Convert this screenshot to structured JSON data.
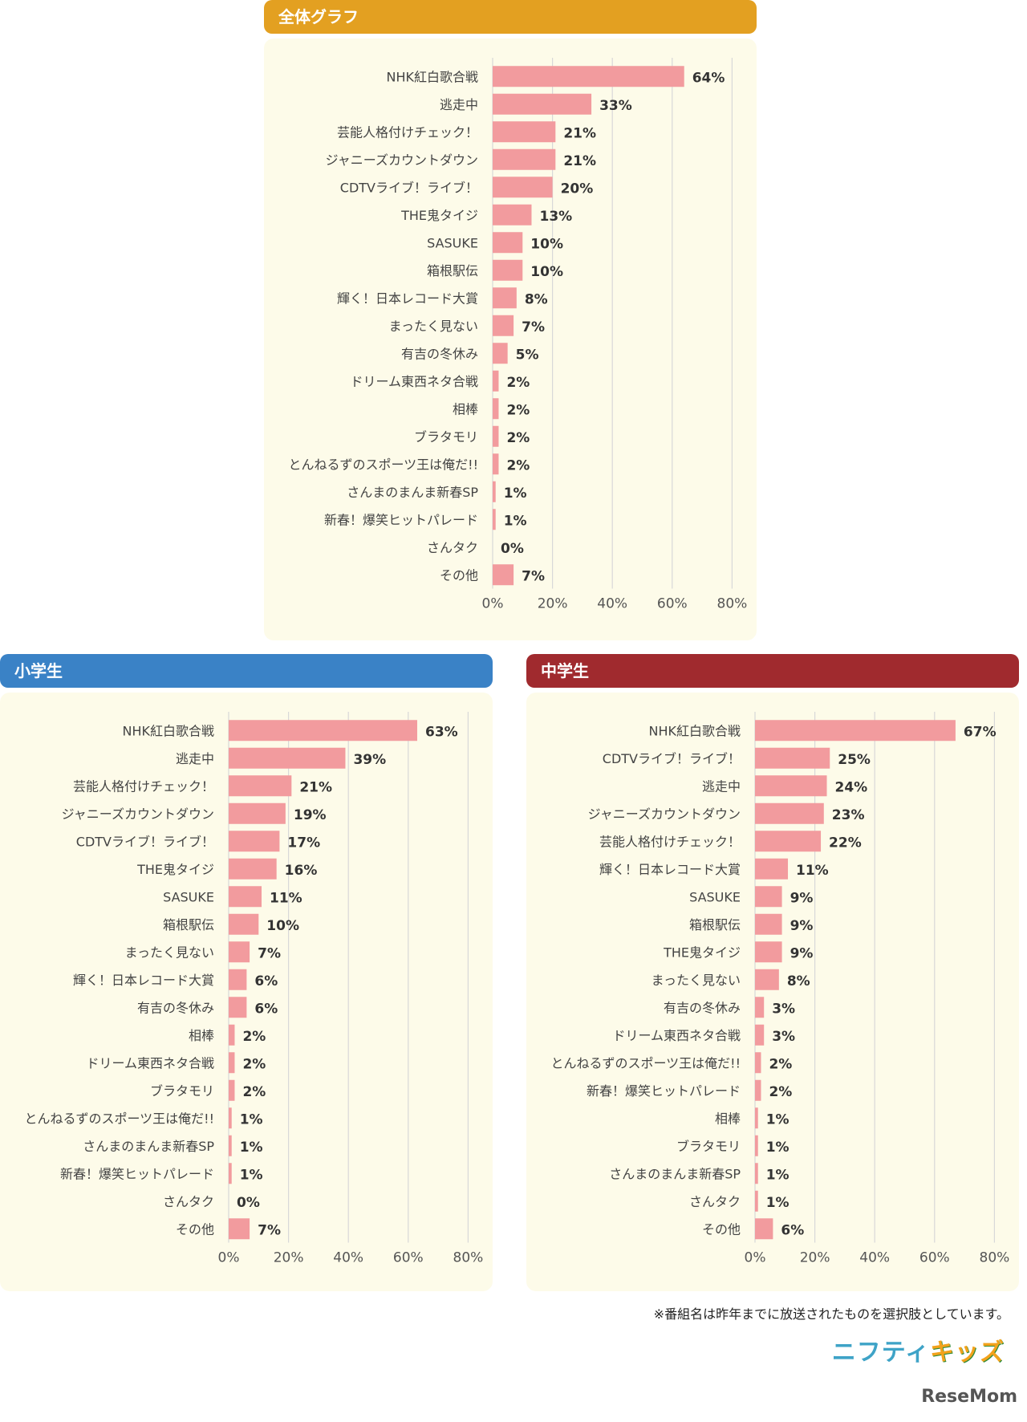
{
  "colors": {
    "bar": "#f29b9e",
    "grid": "#d8d8d8",
    "header_all": "#e3a021",
    "header_elem": "#3a82c6",
    "header_mid": "#a02a2e",
    "panel_bg": "#fdfbe9"
  },
  "note": "※番組名は昨年までに放送されたものを選択肢としています。",
  "brand": {
    "part1": "ニフティ",
    "part2": "キッズ"
  },
  "credit": "ReseMom",
  "chart_data": [
    {
      "type": "bar",
      "orientation": "horizontal",
      "title": "全体グラフ",
      "xlim": [
        0,
        80
      ],
      "ticks": [
        0,
        20,
        40,
        60,
        80
      ],
      "tick_suffix": "%",
      "grid": true,
      "categories": [
        "NHK紅白歌合戦",
        "逃走中",
        "芸能人格付けチェック！",
        "ジャニーズカウントダウン",
        "CDTVライブ！ライブ！",
        "THE鬼タイジ",
        "SASUKE",
        "箱根駅伝",
        "輝く！日本レコード大賞",
        "まったく見ない",
        "有吉の冬休み",
        "ドリーム東西ネタ合戦",
        "相棒",
        "ブラタモリ",
        "とんねるずのスポーツ王は俺だ!!",
        "さんまのまんま新春SP",
        "新春！爆笑ヒットパレード",
        "さんタク",
        "その他"
      ],
      "values": [
        64,
        33,
        21,
        21,
        20,
        13,
        10,
        10,
        8,
        7,
        5,
        2,
        2,
        2,
        2,
        1,
        1,
        0,
        7
      ]
    },
    {
      "type": "bar",
      "orientation": "horizontal",
      "title": "小学生",
      "xlim": [
        0,
        80
      ],
      "ticks": [
        0,
        20,
        40,
        60,
        80
      ],
      "tick_suffix": "%",
      "grid": true,
      "categories": [
        "NHK紅白歌合戦",
        "逃走中",
        "芸能人格付けチェック！",
        "ジャニーズカウントダウン",
        "CDTVライブ！ライブ！",
        "THE鬼タイジ",
        "SASUKE",
        "箱根駅伝",
        "まったく見ない",
        "輝く！日本レコード大賞",
        "有吉の冬休み",
        "相棒",
        "ドリーム東西ネタ合戦",
        "ブラタモリ",
        "とんねるずのスポーツ王は俺だ!!",
        "さんまのまんま新春SP",
        "新春！爆笑ヒットパレード",
        "さんタク",
        "その他"
      ],
      "values": [
        63,
        39,
        21,
        19,
        17,
        16,
        11,
        10,
        7,
        6,
        6,
        2,
        2,
        2,
        1,
        1,
        1,
        0,
        7
      ]
    },
    {
      "type": "bar",
      "orientation": "horizontal",
      "title": "中学生",
      "xlim": [
        0,
        80
      ],
      "ticks": [
        0,
        20,
        40,
        60,
        80
      ],
      "tick_suffix": "%",
      "grid": true,
      "categories": [
        "NHK紅白歌合戦",
        "CDTVライブ！ライブ！",
        "逃走中",
        "ジャニーズカウントダウン",
        "芸能人格付けチェック！",
        "輝く！日本レコード大賞",
        "SASUKE",
        "箱根駅伝",
        "THE鬼タイジ",
        "まったく見ない",
        "有吉の冬休み",
        "ドリーム東西ネタ合戦",
        "とんねるずのスポーツ王は俺だ!!",
        "新春！爆笑ヒットパレード",
        "相棒",
        "ブラタモリ",
        "さんまのまんま新春SP",
        "さんタク",
        "その他"
      ],
      "values": [
        67,
        25,
        24,
        23,
        22,
        11,
        9,
        9,
        9,
        8,
        3,
        3,
        2,
        2,
        1,
        1,
        1,
        1,
        6
      ]
    }
  ]
}
